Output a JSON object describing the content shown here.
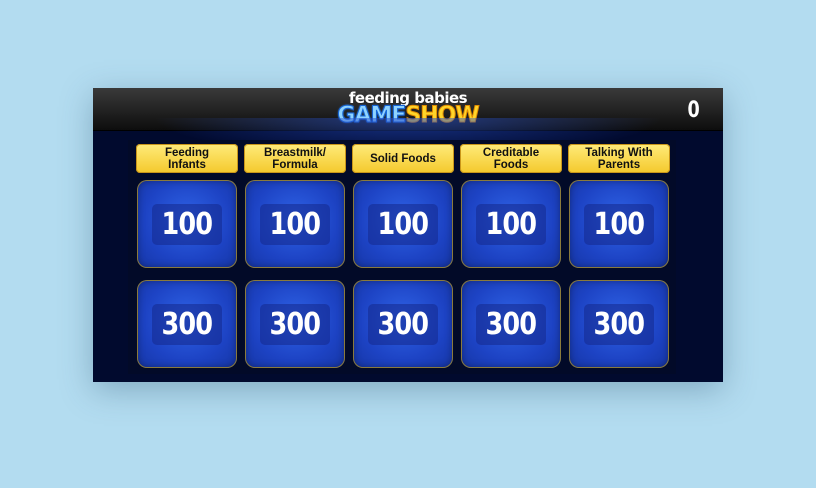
{
  "header": {
    "logo_top": "feeding babies",
    "logo_game": "GAME",
    "logo_show": "SHOW",
    "score": "0"
  },
  "categories": [
    "Feeding\nInfants",
    "Breastmilk/\nFormula",
    "Solid Foods",
    "Creditable\nFoods",
    "Talking With\nParents"
  ],
  "rows": [
    [
      "100",
      "100",
      "100",
      "100",
      "100"
    ],
    [
      "300",
      "300",
      "300",
      "300",
      "300"
    ]
  ]
}
